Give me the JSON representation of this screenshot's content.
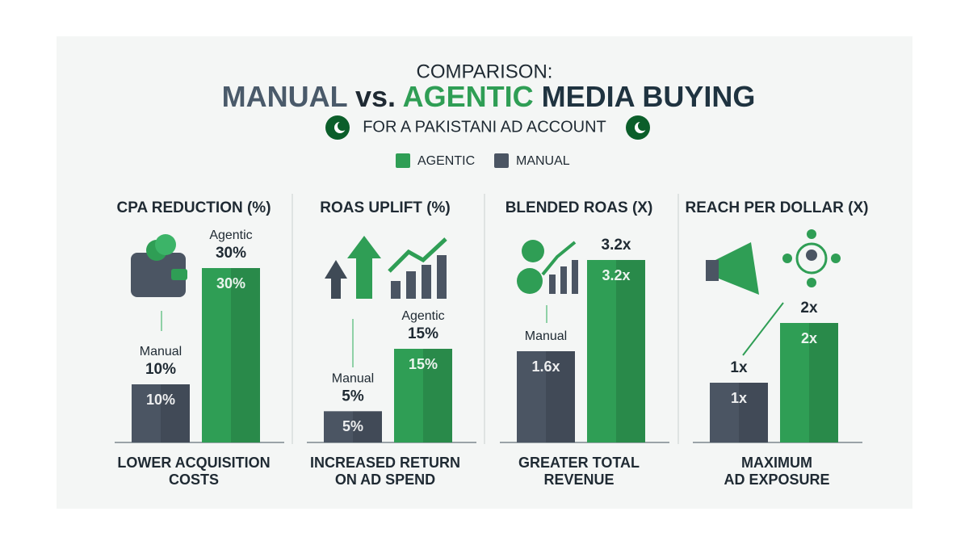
{
  "header": {
    "title": "COMPARISON:",
    "headline": [
      "MANUAL",
      " vs. ",
      "AGENTIC",
      " MEDIA BUYING"
    ],
    "subtitle": "FOR A PAKISTANI AD ACCOUNT"
  },
  "legend": [
    {
      "name": "AGENTIC",
      "color": "#2f9e55"
    },
    {
      "name": "MANUAL",
      "color": "#4b5563"
    }
  ],
  "chart_data": [
    {
      "type": "bar",
      "title": "CPA REDUCTION (%)",
      "categories": [
        "Manual",
        "Agentic"
      ],
      "values": [
        10,
        30
      ],
      "value_labels": [
        "10%",
        "30%"
      ],
      "colors": [
        "#4b5563",
        "#2f9e55"
      ],
      "caption": [
        "LOWER ACQUISITION",
        "COSTS"
      ]
    },
    {
      "type": "bar",
      "title": "ROAS UPLIFT (%)",
      "categories": [
        "Manual",
        "Agentic"
      ],
      "values": [
        5,
        15
      ],
      "value_labels": [
        "5%",
        "15%"
      ],
      "colors": [
        "#4b5563",
        "#2f9e55"
      ],
      "caption": [
        "INCREASED RETURN",
        "ON AD SPEND"
      ]
    },
    {
      "type": "bar",
      "title": "BLENDED ROAS (X)",
      "categories": [
        "Manual",
        null
      ],
      "values": [
        1.6,
        3.2
      ],
      "value_labels": [
        "1.6x",
        "3.2x"
      ],
      "colors": [
        "#4b5563",
        "#2f9e55"
      ],
      "caption": [
        "GREATER TOTAL",
        "REVENUE"
      ]
    },
    {
      "type": "bar",
      "title": "REACH PER DOLLAR (X)",
      "categories": [
        null,
        null
      ],
      "values": [
        1,
        2
      ],
      "value_labels": [
        "1x",
        "2x"
      ],
      "colors": [
        "#4b5563",
        "#2f9e55"
      ],
      "caption": [
        "MAXIMUM",
        "AD EXPOSURE"
      ]
    }
  ]
}
